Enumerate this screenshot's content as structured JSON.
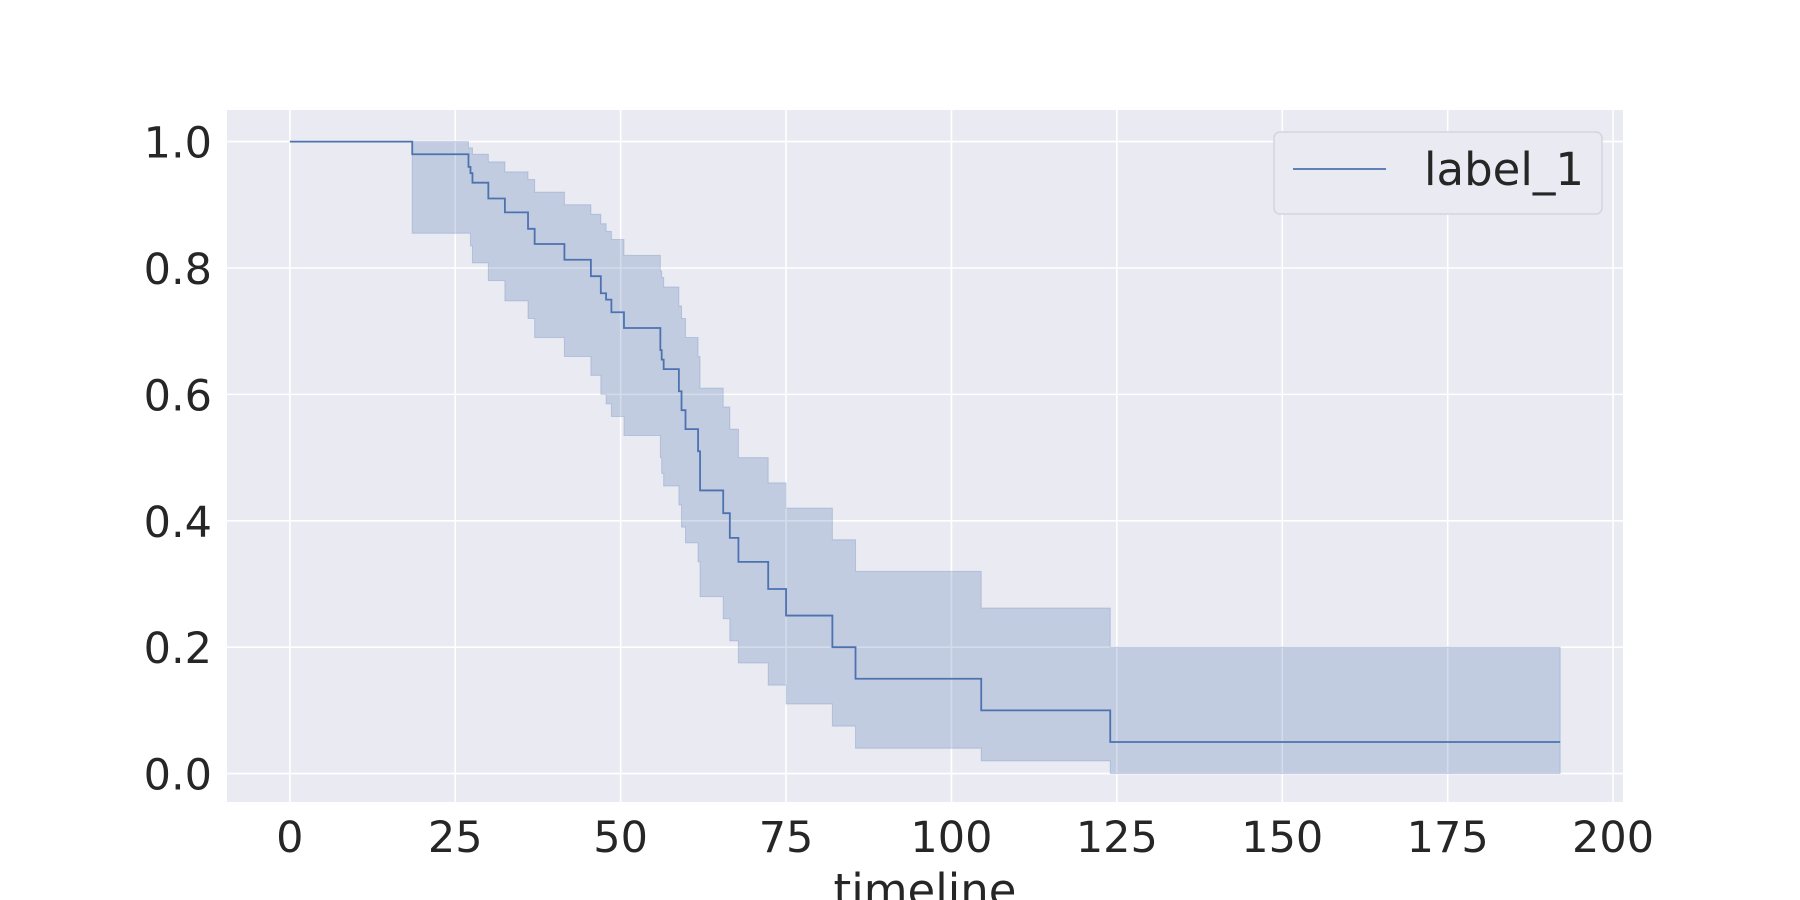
{
  "chart_data": {
    "type": "line",
    "title": "",
    "xlabel": "timeline",
    "ylabel": "",
    "xlim": [
      -9.5,
      201.5
    ],
    "ylim": [
      -0.045,
      1.05
    ],
    "x_ticks": [
      0,
      25,
      50,
      75,
      100,
      125,
      150,
      175,
      200
    ],
    "y_ticks": [
      0.0,
      0.2,
      0.4,
      0.6,
      0.8,
      1.0
    ],
    "x_tick_labels": [
      "0",
      "25",
      "50",
      "75",
      "100",
      "125",
      "150",
      "175",
      "200"
    ],
    "y_tick_labels": [
      "0.0",
      "0.2",
      "0.4",
      "0.6",
      "0.8",
      "1.0"
    ],
    "grid": true,
    "legend_position": "top-right",
    "colors": {
      "line": "#4c72b0",
      "band": "#4c72b0",
      "background": "#eaeaf2",
      "grid": "#ffffff"
    },
    "series": [
      {
        "name": "label_1",
        "style": "step-post",
        "x": [
          0,
          18.5,
          27,
          27.3,
          27.6,
          30,
          32.5,
          36,
          37,
          41.5,
          45.5,
          47,
          47.8,
          48.6,
          50.5,
          56,
          56.2,
          56.5,
          58.8,
          59.2,
          59.8,
          61.7,
          62,
          65.5,
          66.5,
          67.8,
          72.3,
          75,
          82,
          85.5,
          104.5,
          124,
          192
        ],
        "survival": [
          1.0,
          0.98,
          0.96,
          0.95,
          0.935,
          0.91,
          0.888,
          0.862,
          0.838,
          0.813,
          0.787,
          0.76,
          0.75,
          0.73,
          0.705,
          0.67,
          0.655,
          0.64,
          0.605,
          0.575,
          0.545,
          0.51,
          0.448,
          0.412,
          0.373,
          0.335,
          0.292,
          0.25,
          0.2,
          0.15,
          0.1,
          0.05,
          0.05
        ],
        "ci_lower": [
          1.0,
          0.855,
          0.855,
          0.835,
          0.808,
          0.78,
          0.748,
          0.72,
          0.69,
          0.66,
          0.63,
          0.6,
          0.585,
          0.565,
          0.535,
          0.5,
          0.475,
          0.455,
          0.425,
          0.39,
          0.365,
          0.335,
          0.28,
          0.245,
          0.21,
          0.175,
          0.14,
          0.11,
          0.075,
          0.04,
          0.02,
          0.0,
          0.0
        ],
        "ci_upper": [
          1.0,
          1.0,
          0.99,
          0.99,
          0.98,
          0.968,
          0.952,
          0.94,
          0.92,
          0.9,
          0.885,
          0.87,
          0.858,
          0.845,
          0.82,
          0.795,
          0.785,
          0.77,
          0.74,
          0.72,
          0.69,
          0.66,
          0.61,
          0.58,
          0.545,
          0.5,
          0.46,
          0.42,
          0.37,
          0.32,
          0.262,
          0.2,
          0.2
        ]
      }
    ]
  }
}
